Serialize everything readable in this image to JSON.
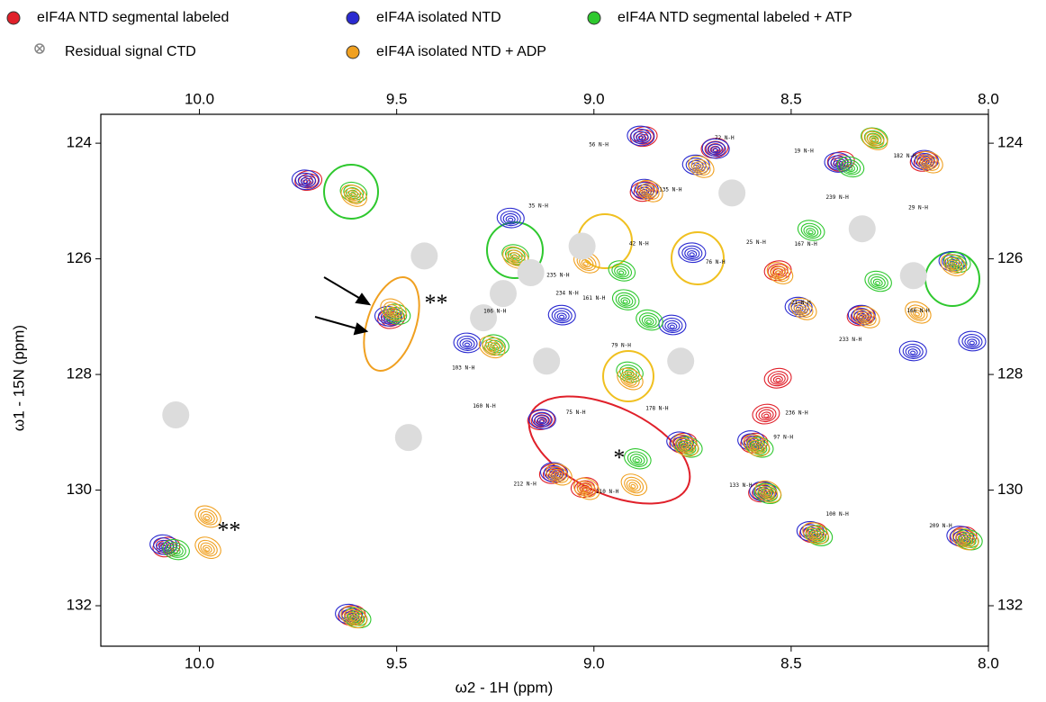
{
  "chart_data": {
    "type": "contour",
    "x_label": "ω2 - 1H (ppm)",
    "y_label": "ω1 - 15N (ppm)",
    "xlim": [
      10.25,
      8.0
    ],
    "ylim": [
      123.5,
      132.7
    ],
    "xticks": [
      {
        "value": 10,
        "label": "10.0"
      },
      9.5,
      {
        "value": 9,
        "label": "9.0"
      },
      8.5,
      {
        "value": 8,
        "label": "8.0"
      }
    ],
    "yticks": [
      124,
      126,
      128,
      130,
      132
    ],
    "series": [
      {
        "name": "eIF4A NTD segmental labeled",
        "color": "#e0202a",
        "x": [
          9.72,
          9.51,
          10.08,
          9.61,
          8.87,
          8.69,
          8.87,
          9.13,
          9.1,
          9.02,
          8.77,
          8.59,
          8.57,
          8.44,
          8.56,
          8.37,
          8.16,
          8.06,
          8.53,
          8.32,
          8.53
        ],
        "y": [
          124.66,
          127.05,
          131.0,
          132.18,
          123.9,
          124.1,
          124.85,
          128.8,
          129.73,
          129.97,
          129.2,
          129.2,
          130.05,
          130.75,
          128.7,
          124.33,
          124.33,
          130.82,
          126.22,
          127.0,
          128.08
        ]
      },
      {
        "name": "eIF4A isolated NTD",
        "color": "#2a2ad0",
        "x": [
          9.73,
          9.52,
          10.09,
          9.62,
          9.21,
          8.88,
          8.69,
          8.74,
          8.87,
          8.75,
          9.13,
          9.1,
          8.78,
          8.6,
          8.57,
          8.45,
          8.38,
          8.16,
          8.09,
          8.07,
          8.32,
          9.08,
          8.8,
          8.48,
          8.19,
          9.32,
          8.04
        ],
        "y": [
          124.64,
          127.0,
          130.95,
          132.15,
          125.3,
          123.88,
          124.1,
          124.38,
          124.8,
          125.9,
          128.78,
          129.7,
          129.17,
          129.15,
          130.03,
          130.72,
          124.34,
          124.3,
          126.05,
          130.8,
          126.98,
          126.98,
          127.15,
          126.84,
          127.6,
          127.46,
          127.43
        ]
      },
      {
        "name": "eIF4A NTD segmental labeled + ATP",
        "color": "#2ec82e",
        "x": [
          9.61,
          9.5,
          10.06,
          9.6,
          9.2,
          8.93,
          8.91,
          8.89,
          8.76,
          8.58,
          8.56,
          8.43,
          8.35,
          8.29,
          8.08,
          8.05,
          8.86,
          8.92,
          8.45,
          8.28,
          9.25
        ],
        "y": [
          124.84,
          126.95,
          131.02,
          132.2,
          125.92,
          126.2,
          127.95,
          129.45,
          129.25,
          129.25,
          130.05,
          130.78,
          124.4,
          123.9,
          126.05,
          130.85,
          127.05,
          126.7,
          125.5,
          126.38,
          127.48
        ]
      },
      {
        "name": "eIF4A isolated NTD + ADP",
        "color": "#f0a020",
        "x": [
          9.61,
          9.51,
          9.98,
          9.98,
          9.61,
          9.2,
          9.02,
          8.73,
          8.86,
          8.91,
          8.9,
          9.09,
          9.02,
          8.77,
          8.59,
          8.56,
          8.44,
          8.29,
          8.15,
          8.09,
          8.06,
          8.31,
          8.53,
          8.18,
          9.26,
          8.47
        ],
        "y": [
          124.88,
          126.85,
          130.43,
          130.97,
          132.17,
          125.95,
          126.03,
          124.38,
          124.8,
          128.05,
          129.88,
          129.7,
          129.95,
          129.2,
          129.2,
          130.0,
          130.72,
          123.9,
          124.3,
          126.08,
          130.82,
          126.98,
          126.22,
          126.9,
          127.5,
          126.84
        ]
      },
      {
        "name": "Residual signal CTD",
        "color": "#dcdcdc",
        "x": [
          9.43,
          9.23,
          9.28,
          9.16,
          9.12,
          9.03,
          8.78,
          9.47,
          10.06,
          8.32,
          8.19,
          8.65
        ],
        "y": [
          125.95,
          126.6,
          127.02,
          126.24,
          127.77,
          125.78,
          127.77,
          129.09,
          128.7,
          125.48,
          126.29,
          124.86
        ]
      }
    ],
    "peak_labels": [
      {
        "text": "72 N-H",
        "x": 8.669,
        "y": 123.91
      },
      {
        "text": "56 N-H",
        "x": 8.988,
        "y": 124.03
      },
      {
        "text": "135 N-H",
        "x": 8.806,
        "y": 124.81
      },
      {
        "text": "19 N-H",
        "x": 8.468,
        "y": 124.14
      },
      {
        "text": "182 N-H",
        "x": 8.212,
        "y": 124.22
      },
      {
        "text": "239 N-H",
        "x": 8.383,
        "y": 124.94
      },
      {
        "text": "29 N-H",
        "x": 8.178,
        "y": 125.12
      },
      {
        "text": "35 N-H",
        "x": 9.141,
        "y": 125.09
      },
      {
        "text": "42 N-H",
        "x": 8.886,
        "y": 125.74
      },
      {
        "text": "235 N-H",
        "x": 9.091,
        "y": 126.29
      },
      {
        "text": "76 N-H",
        "x": 8.692,
        "y": 126.06
      },
      {
        "text": "25 N-H",
        "x": 8.589,
        "y": 125.72
      },
      {
        "text": "167 N-H",
        "x": 8.463,
        "y": 125.75
      },
      {
        "text": "234 N-H",
        "x": 9.068,
        "y": 126.6
      },
      {
        "text": "161 N-H",
        "x": 9.0,
        "y": 126.68
      },
      {
        "text": "106 N-H",
        "x": 9.251,
        "y": 126.91
      },
      {
        "text": "79 N-H",
        "x": 8.931,
        "y": 127.5
      },
      {
        "text": "103 N-H",
        "x": 9.331,
        "y": 127.89
      },
      {
        "text": "160 N-H",
        "x": 9.278,
        "y": 128.55
      },
      {
        "text": "75 N-H",
        "x": 9.046,
        "y": 128.66
      },
      {
        "text": "178 N-H",
        "x": 8.84,
        "y": 128.59
      },
      {
        "text": "236 N-H",
        "x": 8.486,
        "y": 128.67
      },
      {
        "text": "97 N-H",
        "x": 8.52,
        "y": 129.09
      },
      {
        "text": "212 N-H",
        "x": 9.175,
        "y": 129.9
      },
      {
        "text": "210 N-H",
        "x": 8.966,
        "y": 130.03
      },
      {
        "text": "133 N-H",
        "x": 8.628,
        "y": 129.92
      },
      {
        "text": "100 N-H",
        "x": 8.383,
        "y": 130.42
      },
      {
        "text": "209 N-H",
        "x": 8.121,
        "y": 130.62
      },
      {
        "text": "166 N-H",
        "x": 8.178,
        "y": 126.9
      },
      {
        "text": "233 N-H",
        "x": 8.35,
        "y": 127.4
      },
      {
        "text": "21 N-H",
        "x": 8.475,
        "y": 126.76
      }
    ],
    "annotations": [
      {
        "text": "**",
        "x": 9.4,
        "y": 126.8
      },
      {
        "text": "*",
        "x": 8.936,
        "y": 129.48
      },
      {
        "text": "**",
        "x": 9.925,
        "y": 130.73
      }
    ]
  }
}
